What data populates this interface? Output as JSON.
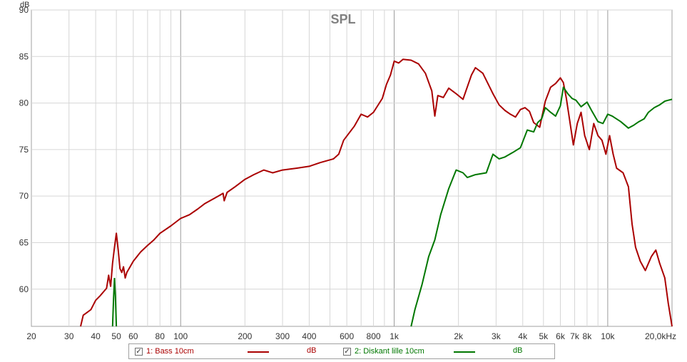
{
  "chart_data": {
    "type": "line",
    "title": "SPL",
    "ylabel": "dB",
    "xlabel": "",
    "x_scale": "log",
    "xlim": [
      20,
      20000
    ],
    "ylim": [
      56,
      90
    ],
    "grid": true,
    "y_ticks": [
      90,
      85,
      80,
      75,
      70,
      65,
      60
    ],
    "x_tick_labels": [
      {
        "f": 20,
        "label": "20"
      },
      {
        "f": 30,
        "label": "30"
      },
      {
        "f": 40,
        "label": "40"
      },
      {
        "f": 50,
        "label": "50"
      },
      {
        "f": 60,
        "label": "60"
      },
      {
        "f": 80,
        "label": "80"
      },
      {
        "f": 100,
        "label": "100"
      },
      {
        "f": 200,
        "label": "200"
      },
      {
        "f": 300,
        "label": "300"
      },
      {
        "f": 400,
        "label": "400"
      },
      {
        "f": 600,
        "label": "600"
      },
      {
        "f": 800,
        "label": "800"
      },
      {
        "f": 1000,
        "label": "1k"
      },
      {
        "f": 2000,
        "label": "2k"
      },
      {
        "f": 3000,
        "label": "3k"
      },
      {
        "f": 4000,
        "label": "4k"
      },
      {
        "f": 5000,
        "label": "5k"
      },
      {
        "f": 6000,
        "label": "6k"
      },
      {
        "f": 7000,
        "label": "7k"
      },
      {
        "f": 8000,
        "label": "8k"
      },
      {
        "f": 10000,
        "label": "10k"
      },
      {
        "f": 20000,
        "label": "20,0kHz"
      }
    ],
    "series": [
      {
        "name": "1: Bass 10cm",
        "color": "#aa0000",
        "points": [
          [
            34,
            56
          ],
          [
            35,
            57.2
          ],
          [
            36,
            57.4
          ],
          [
            38,
            57.8
          ],
          [
            40,
            58.8
          ],
          [
            42,
            59.3
          ],
          [
            45,
            60.1
          ],
          [
            46,
            61.5
          ],
          [
            47,
            60.3
          ],
          [
            48,
            62.8
          ],
          [
            49,
            64.5
          ],
          [
            50,
            66
          ],
          [
            51,
            64.2
          ],
          [
            52,
            62.2
          ],
          [
            53,
            61.8
          ],
          [
            54,
            62.4
          ],
          [
            55,
            61.2
          ],
          [
            56,
            61.8
          ],
          [
            58,
            62.4
          ],
          [
            60,
            63
          ],
          [
            65,
            64
          ],
          [
            70,
            64.7
          ],
          [
            75,
            65.3
          ],
          [
            80,
            66
          ],
          [
            90,
            66.8
          ],
          [
            100,
            67.6
          ],
          [
            110,
            68
          ],
          [
            120,
            68.6
          ],
          [
            130,
            69.2
          ],
          [
            150,
            70
          ],
          [
            158,
            70.3
          ],
          [
            160,
            69.5
          ],
          [
            165,
            70.4
          ],
          [
            180,
            71
          ],
          [
            200,
            71.8
          ],
          [
            220,
            72.3
          ],
          [
            245,
            72.8
          ],
          [
            270,
            72.5
          ],
          [
            300,
            72.8
          ],
          [
            350,
            73
          ],
          [
            400,
            73.2
          ],
          [
            450,
            73.6
          ],
          [
            520,
            74
          ],
          [
            550,
            74.5
          ],
          [
            580,
            76
          ],
          [
            650,
            77.5
          ],
          [
            700,
            78.8
          ],
          [
            750,
            78.5
          ],
          [
            800,
            79
          ],
          [
            880,
            80.5
          ],
          [
            920,
            82
          ],
          [
            960,
            83
          ],
          [
            1000,
            84.5
          ],
          [
            1050,
            84.3
          ],
          [
            1100,
            84.7
          ],
          [
            1200,
            84.6
          ],
          [
            1300,
            84.2
          ],
          [
            1400,
            83.2
          ],
          [
            1500,
            81.3
          ],
          [
            1550,
            78.6
          ],
          [
            1600,
            80.8
          ],
          [
            1700,
            80.6
          ],
          [
            1800,
            81.6
          ],
          [
            1950,
            81
          ],
          [
            2100,
            80.4
          ],
          [
            2300,
            83
          ],
          [
            2400,
            83.8
          ],
          [
            2600,
            83.2
          ],
          [
            2900,
            81
          ],
          [
            3100,
            79.8
          ],
          [
            3300,
            79.2
          ],
          [
            3500,
            78.8
          ],
          [
            3700,
            78.5
          ],
          [
            3900,
            79.3
          ],
          [
            4100,
            79.5
          ],
          [
            4300,
            79.1
          ],
          [
            4500,
            77.9
          ],
          [
            4800,
            77.4
          ],
          [
            5100,
            80.2
          ],
          [
            5400,
            81.7
          ],
          [
            5700,
            82.1
          ],
          [
            6000,
            82.7
          ],
          [
            6200,
            82.2
          ],
          [
            6400,
            80.5
          ],
          [
            6700,
            77.5
          ],
          [
            6900,
            75.5
          ],
          [
            7200,
            77.8
          ],
          [
            7500,
            79
          ],
          [
            7800,
            76.5
          ],
          [
            8200,
            75
          ],
          [
            8600,
            77.8
          ],
          [
            9000,
            76.5
          ],
          [
            9400,
            76
          ],
          [
            9800,
            74.5
          ],
          [
            10200,
            76.5
          ],
          [
            10600,
            74.5
          ],
          [
            11000,
            73
          ],
          [
            11800,
            72.5
          ],
          [
            12500,
            71
          ],
          [
            13000,
            67
          ],
          [
            13500,
            64.5
          ],
          [
            14200,
            63
          ],
          [
            15000,
            62
          ],
          [
            16000,
            63.5
          ],
          [
            16800,
            64.2
          ],
          [
            17500,
            62.8
          ],
          [
            18500,
            61.2
          ],
          [
            19200,
            58.5
          ],
          [
            20000,
            56
          ]
        ]
      },
      {
        "name": "2: Diskant lille 10cm",
        "color": "#007700",
        "points": [
          [
            1200,
            56
          ],
          [
            1250,
            57.8
          ],
          [
            1350,
            60.5
          ],
          [
            1450,
            63.5
          ],
          [
            1550,
            65.3
          ],
          [
            1650,
            68
          ],
          [
            1800,
            70.8
          ],
          [
            1950,
            72.8
          ],
          [
            2100,
            72.5
          ],
          [
            2200,
            72
          ],
          [
            2400,
            72.3
          ],
          [
            2700,
            72.5
          ],
          [
            2900,
            74.5
          ],
          [
            3100,
            74
          ],
          [
            3300,
            74.2
          ],
          [
            3600,
            74.7
          ],
          [
            3900,
            75.2
          ],
          [
            4200,
            77.1
          ],
          [
            4500,
            76.9
          ],
          [
            4700,
            77.9
          ],
          [
            4900,
            78.3
          ],
          [
            5100,
            79.5
          ],
          [
            5400,
            79
          ],
          [
            5700,
            78.6
          ],
          [
            6000,
            79.7
          ],
          [
            6200,
            81.7
          ],
          [
            6500,
            81
          ],
          [
            6800,
            80.5
          ],
          [
            7100,
            80.3
          ],
          [
            7500,
            79.6
          ],
          [
            8000,
            80.1
          ],
          [
            8400,
            79.2
          ],
          [
            9000,
            78
          ],
          [
            9500,
            77.8
          ],
          [
            10000,
            78.8
          ],
          [
            10500,
            78.6
          ],
          [
            11500,
            78
          ],
          [
            12500,
            77.3
          ],
          [
            13200,
            77.6
          ],
          [
            14000,
            78
          ],
          [
            14800,
            78.3
          ],
          [
            15500,
            79
          ],
          [
            16500,
            79.5
          ],
          [
            17500,
            79.8
          ],
          [
            18500,
            80.2
          ],
          [
            19200,
            80.3
          ],
          [
            20000,
            80.4
          ]
        ],
        "extra_segment": [
          [
            48,
            56
          ],
          [
            48.5,
            59
          ],
          [
            49,
            61.2
          ],
          [
            49.5,
            59.2
          ],
          [
            50,
            56
          ]
        ]
      }
    ]
  },
  "legend": {
    "item1": {
      "checked": "✓",
      "label": "1: Bass 10cm",
      "unit": "dB",
      "color": "#aa0000"
    },
    "item2": {
      "checked": "✓",
      "label": "2: Diskant lille 10cm",
      "unit": "dB",
      "color": "#007700"
    }
  }
}
